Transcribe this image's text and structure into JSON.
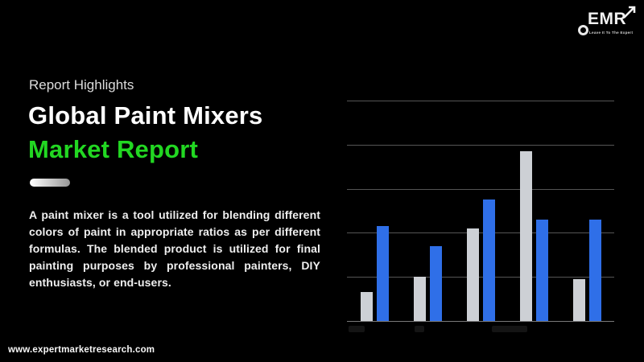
{
  "page": {
    "background": "#000000"
  },
  "logo": {
    "text": "EMR",
    "tagline": "Leave It To The Expert",
    "arrow_icon": "up-right-arrow",
    "ring_icon": "ring"
  },
  "header": {
    "eyebrow": "Report Highlights",
    "title_line1": "Global Paint Mixers",
    "title_line2": "Market Report",
    "accent_color": "#22d722"
  },
  "description": "A paint mixer is a tool utilized for blending different colors of paint in appropriate ratios as per different formulas. The blended product is utilized for final painting purposes by professional painters, DIY enthusiasts, or end-users.",
  "footer": {
    "url": "www.expertmarketresearch.com"
  },
  "chart_data": {
    "type": "bar",
    "title": "",
    "xlabel": "",
    "ylabel": "",
    "categories": [
      "",
      "",
      "",
      "",
      ""
    ],
    "series": [
      {
        "name": "gray",
        "color": "#cdd0d5",
        "values": [
          0.65,
          1.0,
          2.1,
          3.85,
          0.95
        ]
      },
      {
        "name": "blue",
        "color": "#2f6fe8",
        "values": [
          2.15,
          1.7,
          2.75,
          2.3,
          2.3
        ]
      }
    ],
    "ylim": [
      0,
      5
    ],
    "grid": true,
    "gridline_count": 6,
    "gridline_color": "#555555",
    "legend": "none",
    "x_tick_labels_visible": false
  }
}
